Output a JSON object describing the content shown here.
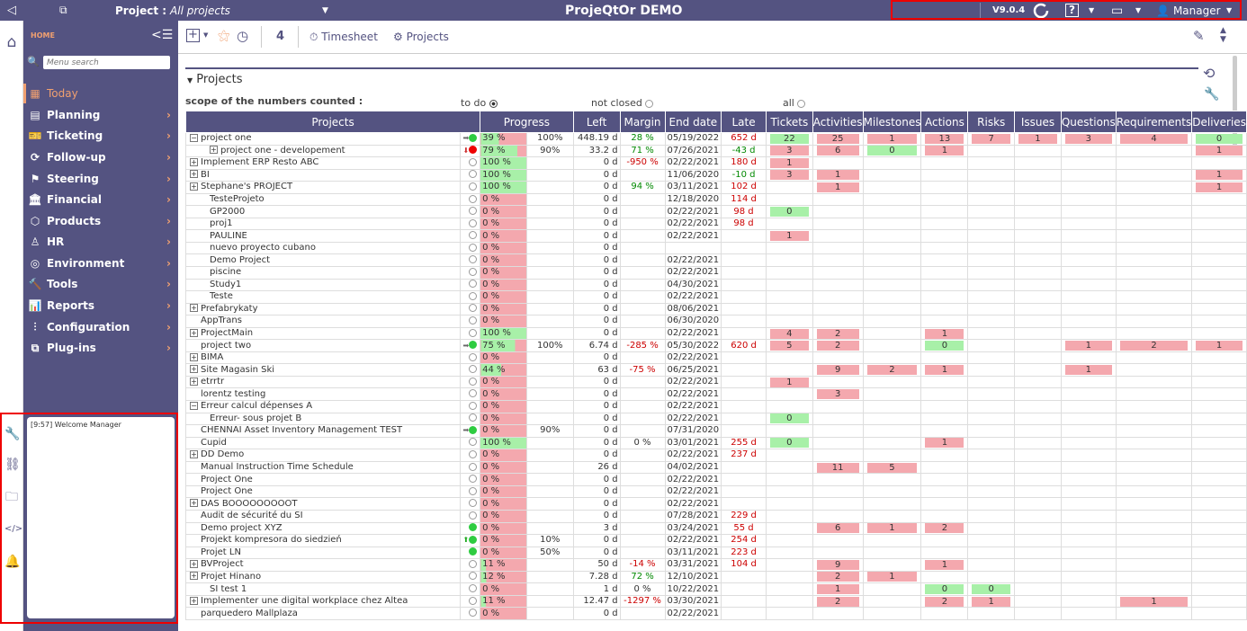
{
  "topbar": {
    "project_label": "Project :",
    "project_value": "All projects",
    "app_title": "ProjeQtOr DEMO",
    "version": "V9.0.4",
    "help": "?",
    "user": "Manager"
  },
  "menu": {
    "home": "HOME",
    "search_placeholder": "Menu search",
    "items": [
      "Today",
      "Planning",
      "Ticketing",
      "Follow-up",
      "Steering",
      "Financial",
      "Products",
      "HR",
      "Environment",
      "Tools",
      "Reports",
      "Configuration",
      "Plug-ins"
    ]
  },
  "messages": {
    "text": "[9:57] Welcome Manager"
  },
  "toolbar": {
    "count": "4",
    "timesheet": "Timesheet",
    "projects": "Projects"
  },
  "section": {
    "title": "Projects",
    "scope_label": "scope of the numbers counted :",
    "opt_todo": "to do",
    "opt_notclosed": "not closed",
    "opt_all": "all"
  },
  "columns": [
    "Projects",
    "Progress",
    "Left",
    "Margin",
    "End date",
    "Late",
    "Tickets",
    "Activities",
    "Milestones",
    "Actions",
    "Risks",
    "Issues",
    "Questions",
    "Requirements",
    "Deliveries"
  ],
  "rows": [
    [
      "-",
      "0",
      "project one",
      "tg",
      "39 %",
      "100%",
      "448.19 d",
      "28 %",
      "05/19/2022",
      "652 d",
      "22",
      "25",
      "1",
      "13",
      "7",
      "1",
      "3",
      "4",
      "0"
    ],
    [
      "+",
      "1",
      "project one - developement",
      "dr",
      "79 %",
      "90%",
      "33.2 d",
      "71 %",
      "07/26/2021",
      "-43 d",
      "3",
      "6",
      "0",
      "1",
      "",
      "",
      "",
      "",
      "1"
    ],
    [
      "+",
      "0",
      "Implement ERP Resto ABC",
      "c",
      "100 %",
      "",
      "0 d",
      "-950 %",
      "02/22/2021",
      "180 d",
      "1",
      "",
      "",
      "",
      "",
      "",
      "",
      "",
      ""
    ],
    [
      "+",
      "0",
      "BI",
      "c",
      "100 %",
      "",
      "0 d",
      "",
      "11/06/2020",
      "-10 d",
      "3",
      "1",
      "",
      "",
      "",
      "",
      "",
      "",
      "1"
    ],
    [
      "+",
      "0",
      "Stephane's PROJECT",
      "c",
      "100 %",
      "",
      "0 d",
      "94 %",
      "03/11/2021",
      "102 d",
      "",
      "1",
      "",
      "",
      "",
      "",
      "",
      "",
      "1"
    ],
    [
      "",
      "1",
      "TesteProjeto",
      "c",
      "0 %",
      "",
      "0 d",
      "",
      "12/18/2020",
      "114 d",
      "",
      "",
      "",
      "",
      "",
      "",
      "",
      "",
      ""
    ],
    [
      "",
      "1",
      "GP2000",
      "c",
      "0 %",
      "",
      "0 d",
      "",
      "02/22/2021",
      "98 d",
      "0",
      "",
      "",
      "",
      "",
      "",
      "",
      "",
      ""
    ],
    [
      "",
      "1",
      "proj1",
      "c",
      "0 %",
      "",
      "0 d",
      "",
      "02/22/2021",
      "98 d",
      "",
      "",
      "",
      "",
      "",
      "",
      "",
      "",
      ""
    ],
    [
      "",
      "1",
      "PAULINE",
      "c",
      "0 %",
      "",
      "0 d",
      "",
      "02/22/2021",
      "",
      "1",
      "",
      "",
      "",
      "",
      "",
      "",
      "",
      ""
    ],
    [
      "",
      "1",
      "nuevo proyecto cubano",
      "c",
      "0 %",
      "",
      "0 d",
      "",
      "",
      "",
      "",
      "",
      "",
      "",
      "",
      "",
      "",
      "",
      ""
    ],
    [
      "",
      "1",
      "Demo Project",
      "c",
      "0 %",
      "",
      "0 d",
      "",
      "02/22/2021",
      "",
      "",
      "",
      "",
      "",
      "",
      "",
      "",
      "",
      ""
    ],
    [
      "",
      "1",
      "piscine",
      "c",
      "0 %",
      "",
      "0 d",
      "",
      "02/22/2021",
      "",
      "",
      "",
      "",
      "",
      "",
      "",
      "",
      "",
      ""
    ],
    [
      "",
      "1",
      "Study1",
      "c",
      "0 %",
      "",
      "0 d",
      "",
      "04/30/2021",
      "",
      "",
      "",
      "",
      "",
      "",
      "",
      "",
      "",
      ""
    ],
    [
      "",
      "1",
      "Teste",
      "c",
      "0 %",
      "",
      "0 d",
      "",
      "02/22/2021",
      "",
      "",
      "",
      "",
      "",
      "",
      "",
      "",
      "",
      ""
    ],
    [
      "+",
      "0",
      "Prefabrykaty",
      "c",
      "0 %",
      "",
      "0 d",
      "",
      "08/06/2021",
      "",
      "",
      "",
      "",
      "",
      "",
      "",
      "",
      "",
      ""
    ],
    [
      "",
      "0",
      "AppTrans",
      "c",
      "0 %",
      "",
      "0 d",
      "",
      "06/30/2020",
      "",
      "",
      "",
      "",
      "",
      "",
      "",
      "",
      "",
      ""
    ],
    [
      "+",
      "0",
      "ProjectMain",
      "c",
      "100 %",
      "",
      "0 d",
      "",
      "02/22/2021",
      "",
      "4",
      "2",
      "",
      "1",
      "",
      "",
      "",
      "",
      ""
    ],
    [
      "",
      "0",
      "project two",
      "tg",
      "75 %",
      "100%",
      "6.74 d",
      "-285 %",
      "05/30/2022",
      "620 d",
      "5",
      "2",
      "",
      "0",
      "",
      "",
      "1",
      "2",
      "1"
    ],
    [
      "+",
      "0",
      "BIMA",
      "c",
      "0 %",
      "",
      "0 d",
      "",
      "02/22/2021",
      "",
      "",
      "",
      "",
      "",
      "",
      "",
      "",
      "",
      ""
    ],
    [
      "+",
      "0",
      "Site Magasin Ski",
      "c",
      "44 %",
      "",
      "63 d",
      "-75 %",
      "06/25/2021",
      "",
      "",
      "9",
      "2",
      "1",
      "",
      "",
      "1",
      "",
      ""
    ],
    [
      "+",
      "0",
      "etrrtr",
      "c",
      "0 %",
      "",
      "0 d",
      "",
      "02/22/2021",
      "",
      "1",
      "",
      "",
      "",
      "",
      "",
      "",
      "",
      ""
    ],
    [
      "",
      "0",
      "lorentz testing",
      "c",
      "0 %",
      "",
      "0 d",
      "",
      "02/22/2021",
      "",
      "",
      "3",
      "",
      "",
      "",
      "",
      "",
      "",
      ""
    ],
    [
      "-",
      "0",
      "Erreur calcul dépenses A",
      "c",
      "0 %",
      "",
      "0 d",
      "",
      "02/22/2021",
      "",
      "",
      "",
      "",
      "",
      "",
      "",
      "",
      "",
      ""
    ],
    [
      "",
      "1",
      "Erreur- sous projet B",
      "c",
      "0 %",
      "",
      "0 d",
      "",
      "02/22/2021",
      "",
      "0",
      "",
      "",
      "",
      "",
      "",
      "",
      "",
      ""
    ],
    [
      "",
      "0",
      "CHENNAI Asset Inventory Management TEST",
      "tg",
      "0 %",
      "90%",
      "0 d",
      "",
      "07/31/2020",
      "",
      "",
      "",
      "",
      "",
      "",
      "",
      "",
      "",
      ""
    ],
    [
      "",
      "0",
      "Cupid",
      "c",
      "100 %",
      "",
      "0 d",
      "0 %",
      "03/01/2021",
      "255 d",
      "0",
      "",
      "",
      "1",
      "",
      "",
      "",
      "",
      ""
    ],
    [
      "+",
      "0",
      "DD Demo",
      "c",
      "0 %",
      "",
      "0 d",
      "",
      "02/22/2021",
      "237 d",
      "",
      "",
      "",
      "",
      "",
      "",
      "",
      "",
      ""
    ],
    [
      "",
      "0",
      "Manual Instruction Time Schedule",
      "c",
      "0 %",
      "",
      "26 d",
      "",
      "04/02/2021",
      "",
      "",
      "11",
      "5",
      "",
      "",
      "",
      "",
      "",
      ""
    ],
    [
      "",
      "0",
      "Project One",
      "c",
      "0 %",
      "",
      "0 d",
      "",
      "02/22/2021",
      "",
      "",
      "",
      "",
      "",
      "",
      "",
      "",
      "",
      ""
    ],
    [
      "",
      "0",
      "Project One",
      "c",
      "0 %",
      "",
      "0 d",
      "",
      "02/22/2021",
      "",
      "",
      "",
      "",
      "",
      "",
      "",
      "",
      "",
      ""
    ],
    [
      "+",
      "0",
      "DAS BOOOOOOOOOT",
      "c",
      "0 %",
      "",
      "0 d",
      "",
      "02/22/2021",
      "",
      "",
      "",
      "",
      "",
      "",
      "",
      "",
      "",
      ""
    ],
    [
      "",
      "0",
      "Audit de sécurité du SI",
      "c",
      "0 %",
      "",
      "0 d",
      "",
      "07/28/2021",
      "229 d",
      "",
      "",
      "",
      "",
      "",
      "",
      "",
      "",
      ""
    ],
    [
      "",
      "0",
      "Demo project XYZ",
      "g",
      "0 %",
      "",
      "3 d",
      "",
      "03/24/2021",
      "55 d",
      "",
      "6",
      "1",
      "2",
      "",
      "",
      "",
      "",
      ""
    ],
    [
      "",
      "0",
      "Projekt kompresora do siedzień",
      "ug",
      "0 %",
      "10%",
      "0 d",
      "",
      "02/22/2021",
      "254 d",
      "",
      "",
      "",
      "",
      "",
      "",
      "",
      "",
      ""
    ],
    [
      "",
      "0",
      "Projet LN",
      "g",
      "0 %",
      "50%",
      "0 d",
      "",
      "03/11/2021",
      "223 d",
      "",
      "",
      "",
      "",
      "",
      "",
      "",
      "",
      ""
    ],
    [
      "+",
      "0",
      "BVProject",
      "c",
      "11 %",
      "",
      "50 d",
      "-14 %",
      "03/31/2021",
      "104 d",
      "",
      "9",
      "",
      "1",
      "",
      "",
      "",
      "",
      ""
    ],
    [
      "+",
      "0",
      "Projet Hinano",
      "c",
      "12 %",
      "",
      "7.28 d",
      "72 %",
      "12/10/2021",
      "",
      "",
      "2",
      "1",
      "",
      "",
      "",
      "",
      "",
      ""
    ],
    [
      "",
      "1",
      "SI test 1",
      "c",
      "0 %",
      "",
      "1 d",
      "0 %",
      "10/22/2021",
      "",
      "",
      "1",
      "",
      "0",
      "0",
      "",
      "",
      "",
      ""
    ],
    [
      "+",
      "0",
      "Implementer une digital workplace chez Altea",
      "c",
      "11 %",
      "",
      "12.47 d",
      "-1297 %",
      "03/30/2021",
      "",
      "",
      "2",
      "",
      "2",
      "1",
      "",
      "",
      "1",
      ""
    ],
    [
      "",
      "0",
      "parquedero Mallplaza",
      "c",
      "0 %",
      "",
      "0 d",
      "",
      "02/22/2021",
      "",
      "",
      "",
      "",
      "",
      "",
      "",
      "",
      "",
      ""
    ]
  ]
}
